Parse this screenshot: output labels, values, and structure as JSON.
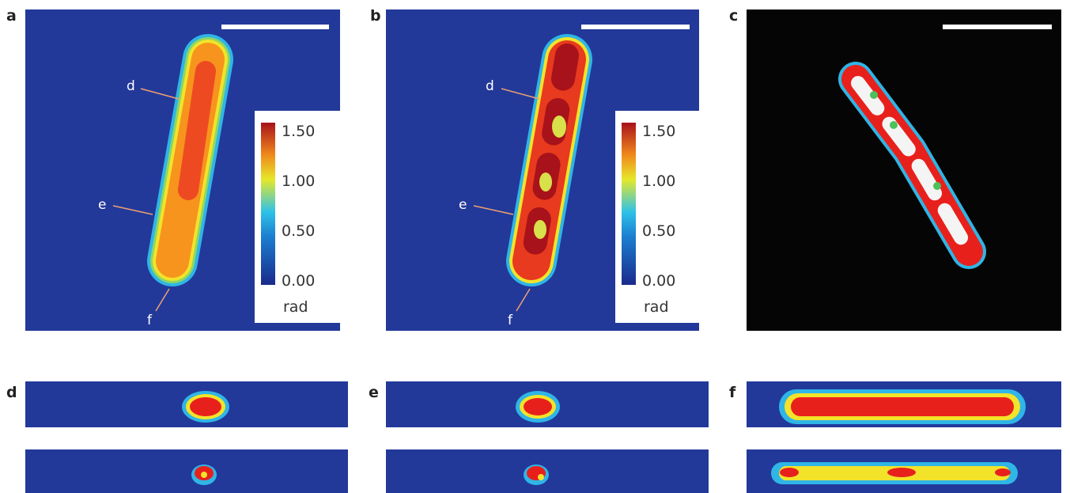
{
  "panels": [
    {
      "label": "a",
      "arrows": [
        "d",
        "e",
        "f"
      ],
      "colorbar": {
        "ticks": [
          "1.50",
          "1.00",
          "0.50",
          "0.00"
        ],
        "unit": "rad"
      }
    },
    {
      "label": "b",
      "arrows": [
        "d",
        "e",
        "f"
      ],
      "colorbar": {
        "ticks": [
          "1.50",
          "1.00",
          "0.50",
          "0.00"
        ],
        "unit": "rad"
      }
    },
    {
      "label": "c"
    },
    {
      "label": "d"
    },
    {
      "label": "e"
    },
    {
      "label": "f"
    }
  ]
}
